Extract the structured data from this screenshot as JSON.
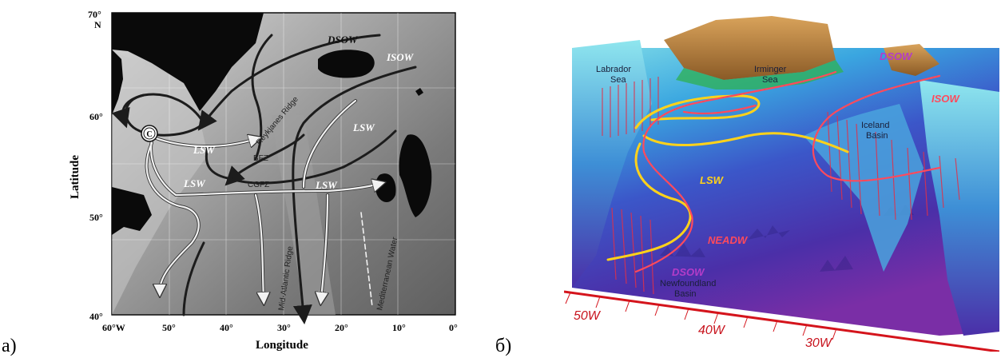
{
  "panels": {
    "a": {
      "label": "а)",
      "lat_axis": {
        "title": "Latitude",
        "top_tick": "70°",
        "top_unit": "N",
        "ticks": [
          "60°",
          "50°",
          "40°"
        ]
      },
      "lon_axis": {
        "title": "Longitude",
        "first_tick": "60°W",
        "ticks": [
          "50°",
          "40°",
          "30°",
          "20°",
          "10°",
          "0°"
        ]
      },
      "water_masses": {
        "dsow": "DSOW",
        "isow": "ISOW",
        "lsw": "LSW"
      },
      "features": {
        "reykjanes": "Reykjanes Ridge",
        "bfz": "BFZ",
        "cgfz": "CGFZ",
        "mar": "Mid-Atlantic Ridge",
        "medwater": "Mediterranean Water",
        "convection": "C"
      },
      "colors": {
        "ocean": "#8f8f8f",
        "land": "#0a0a0a",
        "deep_current": "#1c1c1c",
        "lsw_current": "#f2f2f2"
      }
    },
    "b": {
      "label": "б)",
      "places": {
        "labrador": [
          "Labrador",
          "Sea"
        ],
        "irminger": [
          "Irminger",
          "Sea"
        ],
        "iceland": [
          "Iceland",
          "Basin"
        ],
        "newfoundland": [
          "Newfoundland",
          "Basin"
        ]
      },
      "water_masses": {
        "dsow_top": "DSOW",
        "isow": "ISOW",
        "lsw": "LSW",
        "neadw": "NEADW",
        "dsow_bottom": "DSOW"
      },
      "lon_ticks": [
        "50W",
        "40W",
        "30W"
      ],
      "colors": {
        "lsw_path": "#ffd21a",
        "deep_path": "#ff4a5c",
        "dsow_text": "#b43cc8",
        "axis": "#d4141c",
        "land": "#a8763a",
        "basin": "#3a2fa8"
      }
    }
  }
}
